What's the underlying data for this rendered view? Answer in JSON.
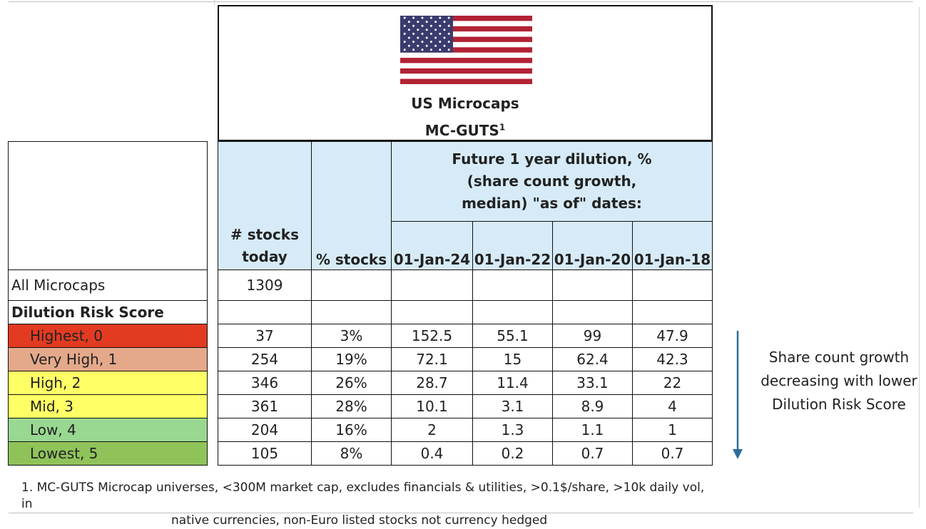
{
  "header": {
    "title": "US Microcaps",
    "subtitle": "MC-GUTS",
    "footnote_mark": "1",
    "flag": "us-flag"
  },
  "columns": {
    "stocks_today": "# stocks today",
    "pct_stocks": "% stocks",
    "dilution_group": "Future 1 year dilution, % (share count growth, median) \"as of\" dates:",
    "dates": [
      "01-Jan-24",
      "01-Jan-22",
      "01-Jan-20",
      "01-Jan-18"
    ]
  },
  "all_microcaps": {
    "label": "All Microcaps",
    "stocks": "1309"
  },
  "section_label": "Dilution Risk Score",
  "rows": [
    {
      "label": "Highest, 0",
      "stocks": "37",
      "pct": "3%",
      "d24": "152.5",
      "d22": "55.1",
      "d20": "99",
      "d18": "47.9"
    },
    {
      "label": "Very High, 1",
      "stocks": "254",
      "pct": "19%",
      "d24": "72.1",
      "d22": "15",
      "d20": "62.4",
      "d18": "42.3"
    },
    {
      "label": "High, 2",
      "stocks": "346",
      "pct": "26%",
      "d24": "28.7",
      "d22": "11.4",
      "d20": "33.1",
      "d18": "22"
    },
    {
      "label": "Mid, 3",
      "stocks": "361",
      "pct": "28%",
      "d24": "10.1",
      "d22": "3.1",
      "d20": "8.9",
      "d18": "4"
    },
    {
      "label": "Low, 4",
      "stocks": "204",
      "pct": "16%",
      "d24": "2",
      "d22": "1.3",
      "d20": "1.1",
      "d18": "1"
    },
    {
      "label": "Lowest, 5",
      "stocks": "105",
      "pct": "8%",
      "d24": "0.4",
      "d22": "0.2",
      "d20": "0.7",
      "d18": "0.7"
    }
  ],
  "row_colors": [
    "#e23b22",
    "#e4a98a",
    "#ffff66",
    "#ffff66",
    "#99d891",
    "#8fc35a"
  ],
  "side_note": "Share count growth decreasing with lower Dilution Risk Score",
  "side_arrow": "down-arrow",
  "footnote": {
    "line1": "1. MC-GUTS Microcap universes, <300M market cap, excludes financials & utilities, >0.1$/share, >10k daily vol, in",
    "line2": "native currencies, non-Euro listed stocks not currency hedged"
  }
}
